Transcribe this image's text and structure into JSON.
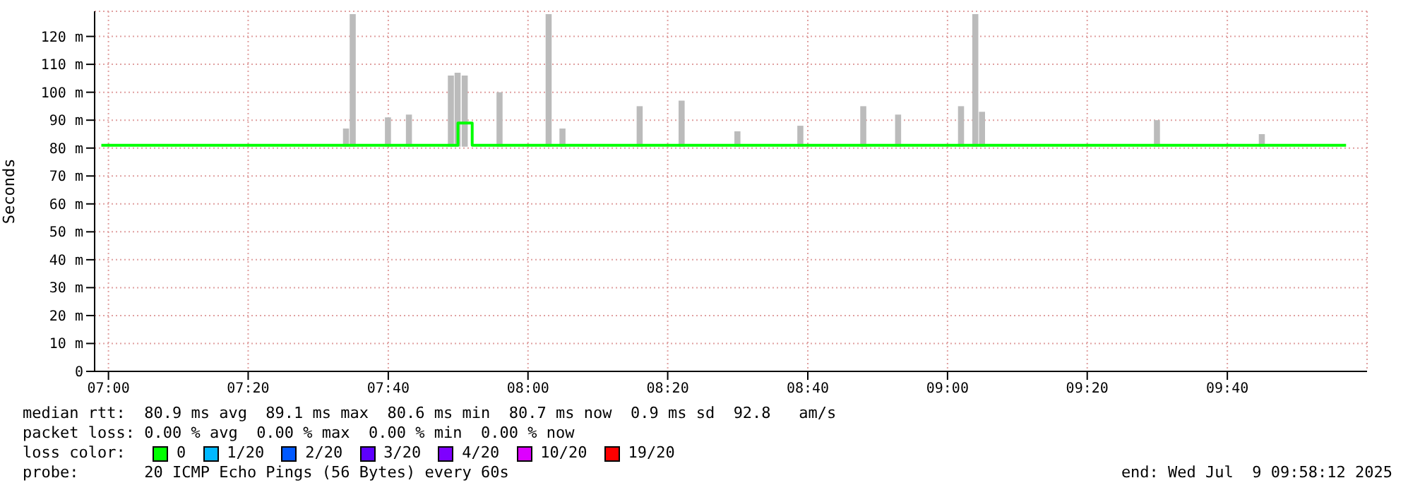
{
  "chart_data": {
    "type": "step",
    "ylabel": "Seconds",
    "legend_title": "loss color:",
    "legend": "bottom",
    "grid": true,
    "xlim": [
      6.967,
      10
    ],
    "xticks": [
      {
        "value": 7,
        "label": "07:00"
      },
      {
        "value": 7.333,
        "label": "07:20"
      },
      {
        "value": 7.667,
        "label": "07:40"
      },
      {
        "value": 8,
        "label": "08:00"
      },
      {
        "value": 8.333,
        "label": "08:20"
      },
      {
        "value": 8.667,
        "label": "08:40"
      },
      {
        "value": 9,
        "label": "09:00"
      },
      {
        "value": 9.333,
        "label": "09:20"
      },
      {
        "value": 9.667,
        "label": "09:40"
      }
    ],
    "ylim": [
      0,
      129
    ],
    "yticks": [
      0,
      {
        "value": 10,
        "label": "10 m"
      },
      {
        "value": 20,
        "label": "20 m"
      },
      {
        "value": 30,
        "label": "30 m"
      },
      {
        "value": 40,
        "label": "40 m"
      },
      {
        "value": 50,
        "label": "50 m"
      },
      {
        "value": 60,
        "label": "60 m"
      },
      {
        "value": 70,
        "label": "70 m"
      },
      {
        "value": 80,
        "label": "80 m"
      },
      {
        "value": 90,
        "label": "90 m"
      },
      {
        "value": 100,
        "label": "100 m"
      },
      {
        "value": 110,
        "label": "110 m"
      },
      {
        "value": 120,
        "label": "120 m"
      }
    ],
    "series": [
      {
        "type": "bar",
        "color": "#bbbbbb",
        "x": [
          7.567,
          7.583,
          7.667,
          7.717,
          7.817,
          7.833,
          7.85,
          7.933,
          8.05,
          8.083,
          8.267,
          8.367,
          8.5,
          8.65,
          8.8,
          8.883,
          9.033,
          9.067,
          9.083,
          9.5,
          9.75
        ],
        "base": [
          80.5,
          80.5,
          80.5,
          80.5,
          80.5,
          80.5,
          80.5,
          80.5,
          80.5,
          80.5,
          80.5,
          80.5,
          80.5,
          80.5,
          80.5,
          80.5,
          80.5,
          80.5,
          80.5,
          80.5,
          80.5
        ],
        "values": [
          6.5,
          47.5,
          10.5,
          11.5,
          25.5,
          26.5,
          25.5,
          19.5,
          47.5,
          6.5,
          14.5,
          16.5,
          5.5,
          7.5,
          14.5,
          11.5,
          14.5,
          47.5,
          12.5,
          9.5,
          4.5
        ]
      },
      {
        "name": "0",
        "color": "#00ff00",
        "x": [
          6.983,
          7.833,
          7.867,
          9.95
        ],
        "values": [
          81,
          89,
          81,
          81
        ]
      },
      {
        "name": "1/20",
        "color": "#00b8ff"
      },
      {
        "name": "2/20",
        "color": "#0059ff"
      },
      {
        "name": "3/20",
        "color": "#5e00ff"
      },
      {
        "name": "4/20",
        "color": "#7e00ff"
      },
      {
        "name": "10/20",
        "color": "#dd00ff"
      },
      {
        "name": "19/20",
        "color": "#ff0000"
      }
    ],
    "annotations": [
      "median rtt:  80.9 ms avg  89.1 ms max  80.6 ms min  80.7 ms now  0.9 ms sd  92.8   am/s",
      "packet loss: 0.00 % avg  0.00 % max  0.00 % min  0.00 % now",
      "probe:       20 ICMP Echo Pings (56 Bytes) every 60s",
      "end: Wed Jul  9 09:58:12 2025"
    ]
  }
}
